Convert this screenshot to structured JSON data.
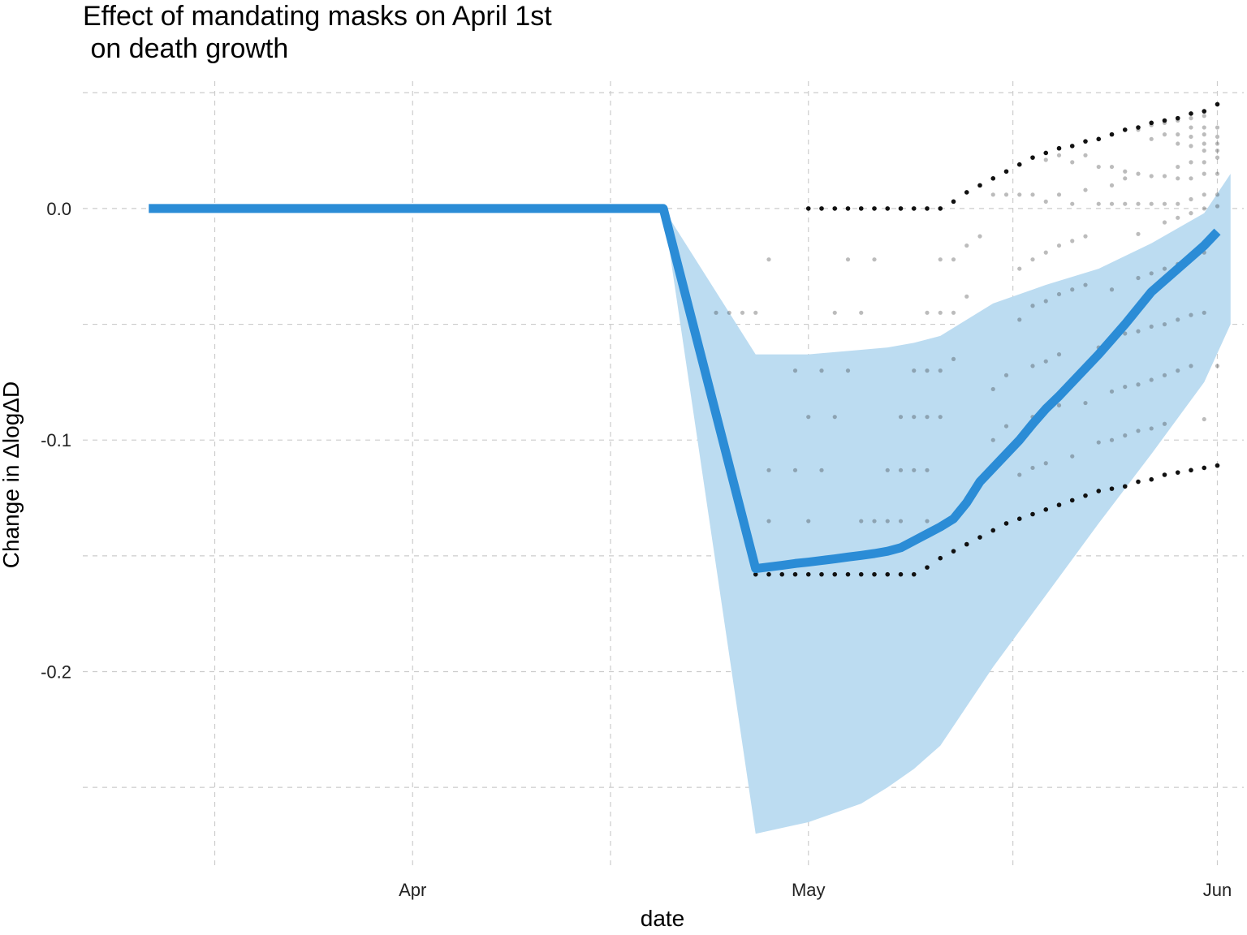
{
  "chart_data": {
    "type": "line",
    "title": "Effect of mandating masks on April 1st\n on death growth",
    "xlabel": "date",
    "ylabel": "Change in ΔlogΔD",
    "x_ticks": [
      {
        "date": "2020-04-01",
        "label": "Apr"
      },
      {
        "date": "2020-05-01",
        "label": "May"
      },
      {
        "date": "2020-06-01",
        "label": "Jun"
      }
    ],
    "y_ticks": [
      {
        "value": 0.0,
        "label": "0.0"
      },
      {
        "value": -0.1,
        "label": "-0.1"
      },
      {
        "value": -0.2,
        "label": "-0.2"
      }
    ],
    "xlim": [
      "2020-03-07",
      "2020-06-03"
    ],
    "ylim": [
      -0.285,
      0.055
    ],
    "grid": true,
    "colors": {
      "line": "#2b8cd6",
      "band": "#bcdcf1",
      "points": "#111111",
      "grid": "#cccccc"
    },
    "series": [
      {
        "x": [
          "2020-03-12",
          "2020-04-20",
          "2020-04-27",
          "2020-04-28",
          "2020-04-29",
          "2020-04-30",
          "2020-05-01",
          "2020-05-02",
          "2020-05-03",
          "2020-05-04",
          "2020-05-05",
          "2020-05-06",
          "2020-05-07",
          "2020-05-08",
          "2020-05-09",
          "2020-05-10",
          "2020-05-11",
          "2020-05-12",
          "2020-05-13",
          "2020-05-14",
          "2020-05-15",
          "2020-05-16",
          "2020-05-17",
          "2020-05-18",
          "2020-05-19",
          "2020-05-20",
          "2020-05-21",
          "2020-05-22",
          "2020-05-23",
          "2020-05-24",
          "2020-05-25",
          "2020-05-26",
          "2020-05-27",
          "2020-05-28",
          "2020-05-29",
          "2020-05-30",
          "2020-05-31",
          "2020-06-01"
        ],
        "values": [
          0.0,
          0.0,
          -0.1555,
          -0.1548,
          -0.1541,
          -0.1533,
          -0.1527,
          -0.152,
          -0.1513,
          -0.1505,
          -0.1498,
          -0.149,
          -0.148,
          -0.1465,
          -0.1435,
          -0.1405,
          -0.1375,
          -0.134,
          -0.127,
          -0.118,
          -0.112,
          -0.106,
          -0.1,
          -0.093,
          -0.0865,
          -0.081,
          -0.075,
          -0.069,
          -0.063,
          -0.0565,
          -0.05,
          -0.043,
          -0.036,
          -0.031,
          -0.026,
          -0.021,
          -0.016,
          -0.01
        ]
      }
    ],
    "ci_band": {
      "x": [
        "2020-04-20",
        "2020-04-27",
        "2020-05-01",
        "2020-05-05",
        "2020-05-07",
        "2020-05-09",
        "2020-05-11",
        "2020-05-15",
        "2020-05-19",
        "2020-05-23",
        "2020-05-27",
        "2020-05-31",
        "2020-06-02"
      ],
      "upper": [
        0.0,
        -0.063,
        -0.063,
        -0.061,
        -0.06,
        -0.058,
        -0.055,
        -0.041,
        -0.033,
        -0.026,
        -0.015,
        -0.002,
        0.015
      ],
      "lower": [
        0.0,
        -0.27,
        -0.265,
        -0.257,
        -0.25,
        -0.242,
        -0.232,
        -0.198,
        -0.167,
        -0.136,
        -0.106,
        -0.075,
        -0.05
      ]
    },
    "bound_points": {
      "upper": {
        "x": [
          "2020-05-01",
          "2020-05-02",
          "2020-05-03",
          "2020-05-04",
          "2020-05-05",
          "2020-05-06",
          "2020-05-07",
          "2020-05-08",
          "2020-05-09",
          "2020-05-10",
          "2020-05-11",
          "2020-05-12",
          "2020-05-13",
          "2020-05-14",
          "2020-05-15",
          "2020-05-16",
          "2020-05-17",
          "2020-05-18",
          "2020-05-19",
          "2020-05-20",
          "2020-05-21",
          "2020-05-22",
          "2020-05-23",
          "2020-05-24",
          "2020-05-25",
          "2020-05-26",
          "2020-05-27",
          "2020-05-28",
          "2020-05-29",
          "2020-05-30",
          "2020-05-31",
          "2020-06-01"
        ],
        "values": [
          0.0,
          0.0,
          0.0,
          0.0,
          0.0,
          0.0,
          0.0,
          0.0,
          0.0,
          0.0,
          0.0,
          0.003,
          0.007,
          0.01,
          0.013,
          0.016,
          0.019,
          0.022,
          0.024,
          0.026,
          0.027,
          0.029,
          0.03,
          0.032,
          0.034,
          0.035,
          0.037,
          0.038,
          0.039,
          0.041,
          0.042,
          0.045
        ]
      },
      "lower": {
        "x": [
          "2020-04-27",
          "2020-04-28",
          "2020-04-29",
          "2020-04-30",
          "2020-05-01",
          "2020-05-02",
          "2020-05-03",
          "2020-05-04",
          "2020-05-05",
          "2020-05-06",
          "2020-05-07",
          "2020-05-08",
          "2020-05-09",
          "2020-05-10",
          "2020-05-11",
          "2020-05-12",
          "2020-05-13",
          "2020-05-14",
          "2020-05-15",
          "2020-05-16",
          "2020-05-17",
          "2020-05-18",
          "2020-05-19",
          "2020-05-20",
          "2020-05-21",
          "2020-05-22",
          "2020-05-23",
          "2020-05-24",
          "2020-05-25",
          "2020-05-26",
          "2020-05-27",
          "2020-05-28",
          "2020-05-29",
          "2020-05-30",
          "2020-05-31",
          "2020-06-01"
        ],
        "values": [
          -0.158,
          -0.158,
          -0.158,
          -0.158,
          -0.158,
          -0.158,
          -0.158,
          -0.158,
          -0.158,
          -0.158,
          -0.158,
          -0.158,
          -0.158,
          -0.155,
          -0.151,
          -0.148,
          -0.145,
          -0.142,
          -0.139,
          -0.136,
          -0.134,
          -0.132,
          -0.13,
          -0.128,
          -0.126,
          -0.124,
          -0.122,
          -0.121,
          -0.12,
          -0.118,
          -0.117,
          -0.115,
          -0.114,
          -0.113,
          -0.112,
          -0.111
        ]
      }
    },
    "scatter_points": [
      {
        "x": "2020-04-24",
        "y": -0.045
      },
      {
        "x": "2020-04-25",
        "y": -0.045
      },
      {
        "x": "2020-04-26",
        "y": -0.045
      },
      {
        "x": "2020-04-27",
        "y": -0.045
      },
      {
        "x": "2020-04-28",
        "y": -0.022
      },
      {
        "x": "2020-04-28",
        "y": -0.113
      },
      {
        "x": "2020-04-28",
        "y": -0.135
      },
      {
        "x": "2020-04-30",
        "y": -0.07
      },
      {
        "x": "2020-04-30",
        "y": -0.113
      },
      {
        "x": "2020-05-01",
        "y": -0.09
      },
      {
        "x": "2020-05-01",
        "y": -0.135
      },
      {
        "x": "2020-05-02",
        "y": -0.07
      },
      {
        "x": "2020-05-02",
        "y": -0.113
      },
      {
        "x": "2020-05-03",
        "y": -0.045
      },
      {
        "x": "2020-05-03",
        "y": -0.09
      },
      {
        "x": "2020-05-04",
        "y": -0.022
      },
      {
        "x": "2020-05-04",
        "y": -0.07
      },
      {
        "x": "2020-05-05",
        "y": -0.045
      },
      {
        "x": "2020-05-05",
        "y": -0.135
      },
      {
        "x": "2020-05-06",
        "y": -0.022
      },
      {
        "x": "2020-05-06",
        "y": -0.135
      },
      {
        "x": "2020-05-07",
        "y": -0.113
      },
      {
        "x": "2020-05-07",
        "y": -0.135
      },
      {
        "x": "2020-05-08",
        "y": -0.09
      },
      {
        "x": "2020-05-08",
        "y": -0.113
      },
      {
        "x": "2020-05-08",
        "y": -0.135
      },
      {
        "x": "2020-05-09",
        "y": -0.07
      },
      {
        "x": "2020-05-09",
        "y": -0.09
      },
      {
        "x": "2020-05-09",
        "y": -0.113
      },
      {
        "x": "2020-05-10",
        "y": -0.045
      },
      {
        "x": "2020-05-10",
        "y": -0.07
      },
      {
        "x": "2020-05-10",
        "y": -0.09
      },
      {
        "x": "2020-05-10",
        "y": -0.113
      },
      {
        "x": "2020-05-10",
        "y": -0.135
      },
      {
        "x": "2020-05-11",
        "y": -0.022
      },
      {
        "x": "2020-05-11",
        "y": -0.045
      },
      {
        "x": "2020-05-11",
        "y": -0.07
      },
      {
        "x": "2020-05-11",
        "y": -0.09
      },
      {
        "x": "2020-05-12",
        "y": -0.022
      },
      {
        "x": "2020-05-12",
        "y": -0.045
      },
      {
        "x": "2020-05-12",
        "y": -0.065
      },
      {
        "x": "2020-05-13",
        "y": -0.016
      },
      {
        "x": "2020-05-13",
        "y": -0.038
      },
      {
        "x": "2020-05-13",
        "y": -0.125
      },
      {
        "x": "2020-05-14",
        "y": -0.012
      },
      {
        "x": "2020-05-14",
        "y": -0.118
      },
      {
        "x": "2020-05-15",
        "y": 0.006
      },
      {
        "x": "2020-05-15",
        "y": -0.078
      },
      {
        "x": "2020-05-15",
        "y": -0.1
      },
      {
        "x": "2020-05-16",
        "y": 0.006
      },
      {
        "x": "2020-05-16",
        "y": -0.072
      },
      {
        "x": "2020-05-16",
        "y": -0.094
      },
      {
        "x": "2020-05-17",
        "y": 0.006
      },
      {
        "x": "2020-05-17",
        "y": -0.026
      },
      {
        "x": "2020-05-17",
        "y": -0.048
      },
      {
        "x": "2020-05-17",
        "y": -0.115
      },
      {
        "x": "2020-05-18",
        "y": 0.006
      },
      {
        "x": "2020-05-18",
        "y": -0.022
      },
      {
        "x": "2020-05-18",
        "y": -0.042
      },
      {
        "x": "2020-05-18",
        "y": -0.068
      },
      {
        "x": "2020-05-18",
        "y": -0.09
      },
      {
        "x": "2020-05-18",
        "y": -0.112
      },
      {
        "x": "2020-05-19",
        "y": 0.021
      },
      {
        "x": "2020-05-19",
        "y": 0.003
      },
      {
        "x": "2020-05-19",
        "y": -0.019
      },
      {
        "x": "2020-05-19",
        "y": -0.04
      },
      {
        "x": "2020-05-19",
        "y": -0.066
      },
      {
        "x": "2020-05-19",
        "y": -0.087
      },
      {
        "x": "2020-05-19",
        "y": -0.11
      },
      {
        "x": "2020-05-20",
        "y": 0.023
      },
      {
        "x": "2020-05-20",
        "y": 0.006
      },
      {
        "x": "2020-05-20",
        "y": -0.016
      },
      {
        "x": "2020-05-20",
        "y": -0.037
      },
      {
        "x": "2020-05-20",
        "y": -0.063
      },
      {
        "x": "2020-05-20",
        "y": -0.085
      },
      {
        "x": "2020-05-21",
        "y": 0.02
      },
      {
        "x": "2020-05-21",
        "y": 0.002
      },
      {
        "x": "2020-05-21",
        "y": -0.014
      },
      {
        "x": "2020-05-21",
        "y": -0.035
      },
      {
        "x": "2020-05-21",
        "y": -0.107
      },
      {
        "x": "2020-05-22",
        "y": 0.023
      },
      {
        "x": "2020-05-22",
        "y": 0.008
      },
      {
        "x": "2020-05-22",
        "y": -0.012
      },
      {
        "x": "2020-05-22",
        "y": -0.033
      },
      {
        "x": "2020-05-22",
        "y": -0.084
      },
      {
        "x": "2020-05-23",
        "y": 0.018
      },
      {
        "x": "2020-05-23",
        "y": 0.002
      },
      {
        "x": "2020-05-23",
        "y": -0.06
      },
      {
        "x": "2020-05-23",
        "y": -0.101
      },
      {
        "x": "2020-05-24",
        "y": 0.018
      },
      {
        "x": "2020-05-24",
        "y": 0.01
      },
      {
        "x": "2020-05-24",
        "y": 0.002
      },
      {
        "x": "2020-05-24",
        "y": -0.035
      },
      {
        "x": "2020-05-24",
        "y": -0.079
      },
      {
        "x": "2020-05-24",
        "y": -0.1
      },
      {
        "x": "2020-05-25",
        "y": 0.016
      },
      {
        "x": "2020-05-25",
        "y": 0.013
      },
      {
        "x": "2020-05-25",
        "y": 0.002
      },
      {
        "x": "2020-05-25",
        "y": -0.054
      },
      {
        "x": "2020-05-25",
        "y": -0.077
      },
      {
        "x": "2020-05-25",
        "y": -0.098
      },
      {
        "x": "2020-05-26",
        "y": 0.034
      },
      {
        "x": "2020-05-26",
        "y": 0.015
      },
      {
        "x": "2020-05-26",
        "y": 0.002
      },
      {
        "x": "2020-05-26",
        "y": -0.011
      },
      {
        "x": "2020-05-26",
        "y": -0.03
      },
      {
        "x": "2020-05-26",
        "y": -0.053
      },
      {
        "x": "2020-05-26",
        "y": -0.076
      },
      {
        "x": "2020-05-26",
        "y": -0.096
      },
      {
        "x": "2020-05-27",
        "y": 0.036
      },
      {
        "x": "2020-05-27",
        "y": 0.03
      },
      {
        "x": "2020-05-27",
        "y": 0.014
      },
      {
        "x": "2020-05-27",
        "y": 0.002
      },
      {
        "x": "2020-05-27",
        "y": -0.028
      },
      {
        "x": "2020-05-27",
        "y": -0.051
      },
      {
        "x": "2020-05-27",
        "y": -0.074
      },
      {
        "x": "2020-05-27",
        "y": -0.095
      },
      {
        "x": "2020-05-28",
        "y": 0.037
      },
      {
        "x": "2020-05-28",
        "y": 0.032
      },
      {
        "x": "2020-05-28",
        "y": 0.014
      },
      {
        "x": "2020-05-28",
        "y": 0.002
      },
      {
        "x": "2020-05-28",
        "y": -0.006
      },
      {
        "x": "2020-05-28",
        "y": -0.026
      },
      {
        "x": "2020-05-28",
        "y": -0.05
      },
      {
        "x": "2020-05-28",
        "y": -0.072
      },
      {
        "x": "2020-05-28",
        "y": -0.093
      },
      {
        "x": "2020-05-29",
        "y": 0.038
      },
      {
        "x": "2020-05-29",
        "y": 0.032
      },
      {
        "x": "2020-05-29",
        "y": 0.028
      },
      {
        "x": "2020-05-29",
        "y": 0.018
      },
      {
        "x": "2020-05-29",
        "y": 0.013
      },
      {
        "x": "2020-05-29",
        "y": 0.002
      },
      {
        "x": "2020-05-29",
        "y": -0.004
      },
      {
        "x": "2020-05-29",
        "y": -0.024
      },
      {
        "x": "2020-05-29",
        "y": -0.048
      },
      {
        "x": "2020-05-29",
        "y": -0.07
      },
      {
        "x": "2020-05-30",
        "y": 0.039
      },
      {
        "x": "2020-05-30",
        "y": 0.035
      },
      {
        "x": "2020-05-30",
        "y": 0.031
      },
      {
        "x": "2020-05-30",
        "y": 0.027
      },
      {
        "x": "2020-05-30",
        "y": 0.02
      },
      {
        "x": "2020-05-30",
        "y": 0.013
      },
      {
        "x": "2020-05-30",
        "y": 0.004
      },
      {
        "x": "2020-05-30",
        "y": -0.002
      },
      {
        "x": "2020-05-30",
        "y": -0.022
      },
      {
        "x": "2020-05-30",
        "y": -0.046
      },
      {
        "x": "2020-05-30",
        "y": -0.068
      },
      {
        "x": "2020-05-31",
        "y": 0.04
      },
      {
        "x": "2020-05-31",
        "y": 0.035
      },
      {
        "x": "2020-05-31",
        "y": 0.032
      },
      {
        "x": "2020-05-31",
        "y": 0.028
      },
      {
        "x": "2020-05-31",
        "y": 0.025
      },
      {
        "x": "2020-05-31",
        "y": 0.02
      },
      {
        "x": "2020-05-31",
        "y": 0.015
      },
      {
        "x": "2020-05-31",
        "y": 0.006
      },
      {
        "x": "2020-05-31",
        "y": 0.0
      },
      {
        "x": "2020-05-31",
        "y": -0.019
      },
      {
        "x": "2020-05-31",
        "y": -0.045
      },
      {
        "x": "2020-05-31",
        "y": -0.091
      },
      {
        "x": "2020-06-01",
        "y": 0.035
      },
      {
        "x": "2020-06-01",
        "y": 0.031
      },
      {
        "x": "2020-06-01",
        "y": 0.028
      },
      {
        "x": "2020-06-01",
        "y": 0.025
      },
      {
        "x": "2020-06-01",
        "y": 0.022
      },
      {
        "x": "2020-06-01",
        "y": 0.015
      },
      {
        "x": "2020-06-01",
        "y": 0.006
      },
      {
        "x": "2020-06-01",
        "y": 0.001
      },
      {
        "x": "2020-06-01",
        "y": -0.068
      }
    ]
  }
}
